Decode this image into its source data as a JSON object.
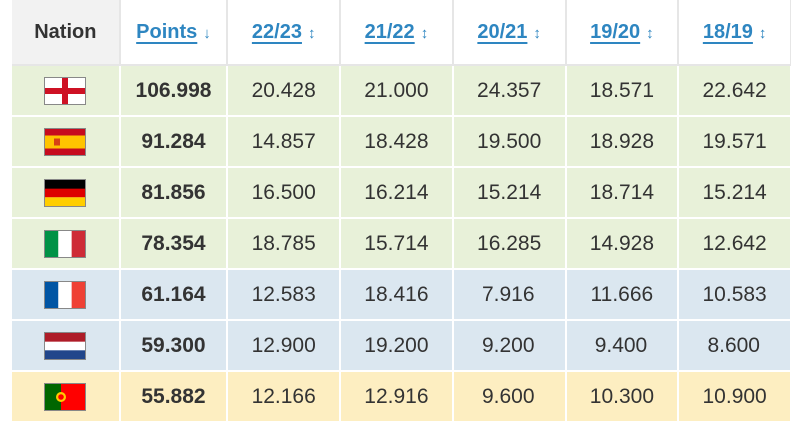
{
  "headers": {
    "nation": "Nation",
    "points": "Points",
    "points_sort": "↓",
    "seasons": [
      {
        "label": "22/23",
        "sort": "↕"
      },
      {
        "label": "21/22",
        "sort": "↕"
      },
      {
        "label": "20/21",
        "sort": "↕"
      },
      {
        "label": "19/20",
        "sort": "↕"
      },
      {
        "label": "18/19",
        "sort": "↕"
      }
    ]
  },
  "rows": [
    {
      "flag": "england-flag-icon",
      "points": "106.998",
      "seasons": [
        "20.428",
        "21.000",
        "24.357",
        "18.571",
        "22.642"
      ],
      "band": "green"
    },
    {
      "flag": "spain-flag-icon",
      "points": "91.284",
      "seasons": [
        "14.857",
        "18.428",
        "19.500",
        "18.928",
        "19.571"
      ],
      "band": "green"
    },
    {
      "flag": "germany-flag-icon",
      "points": "81.856",
      "seasons": [
        "16.500",
        "16.214",
        "15.214",
        "18.714",
        "15.214"
      ],
      "band": "green"
    },
    {
      "flag": "italy-flag-icon",
      "points": "78.354",
      "seasons": [
        "18.785",
        "15.714",
        "16.285",
        "14.928",
        "12.642"
      ],
      "band": "green"
    },
    {
      "flag": "france-flag-icon",
      "points": "61.164",
      "seasons": [
        "12.583",
        "18.416",
        "7.916",
        "11.666",
        "10.583"
      ],
      "band": "blue"
    },
    {
      "flag": "netherlands-flag-icon",
      "points": "59.300",
      "seasons": [
        "12.900",
        "19.200",
        "9.200",
        "9.400",
        "8.600"
      ],
      "band": "blue"
    },
    {
      "flag": "portugal-flag-icon",
      "points": "55.882",
      "seasons": [
        "12.166",
        "12.916",
        "9.600",
        "10.300",
        "10.900"
      ],
      "band": "yellow"
    }
  ],
  "colors": {
    "link": "#2e86c1",
    "band_green": "#e8f1d9",
    "band_blue": "#dbe7f0",
    "band_yellow": "#fdeec1"
  }
}
